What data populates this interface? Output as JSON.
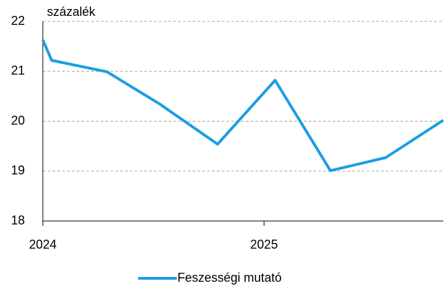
{
  "chart_data": {
    "type": "line",
    "y_axis_label": "százalék",
    "x": [
      2024,
      2024.04,
      2024.29,
      2024.53,
      2024.79,
      2025.05,
      2025.3,
      2025.55,
      2025.81
    ],
    "series": [
      {
        "name": "Feszességi mutató",
        "color": "#1a9fe0",
        "values": [
          21.63,
          21.22,
          20.99,
          20.34,
          19.54,
          20.82,
          19.01,
          19.27,
          20.02
        ]
      }
    ],
    "xlim": [
      2024,
      2025.81
    ],
    "xticks": [
      2024,
      2025
    ],
    "ylim": [
      18,
      22
    ],
    "yticks": [
      18,
      19,
      20,
      21,
      22
    ],
    "grid": true,
    "legend": "bottom"
  }
}
